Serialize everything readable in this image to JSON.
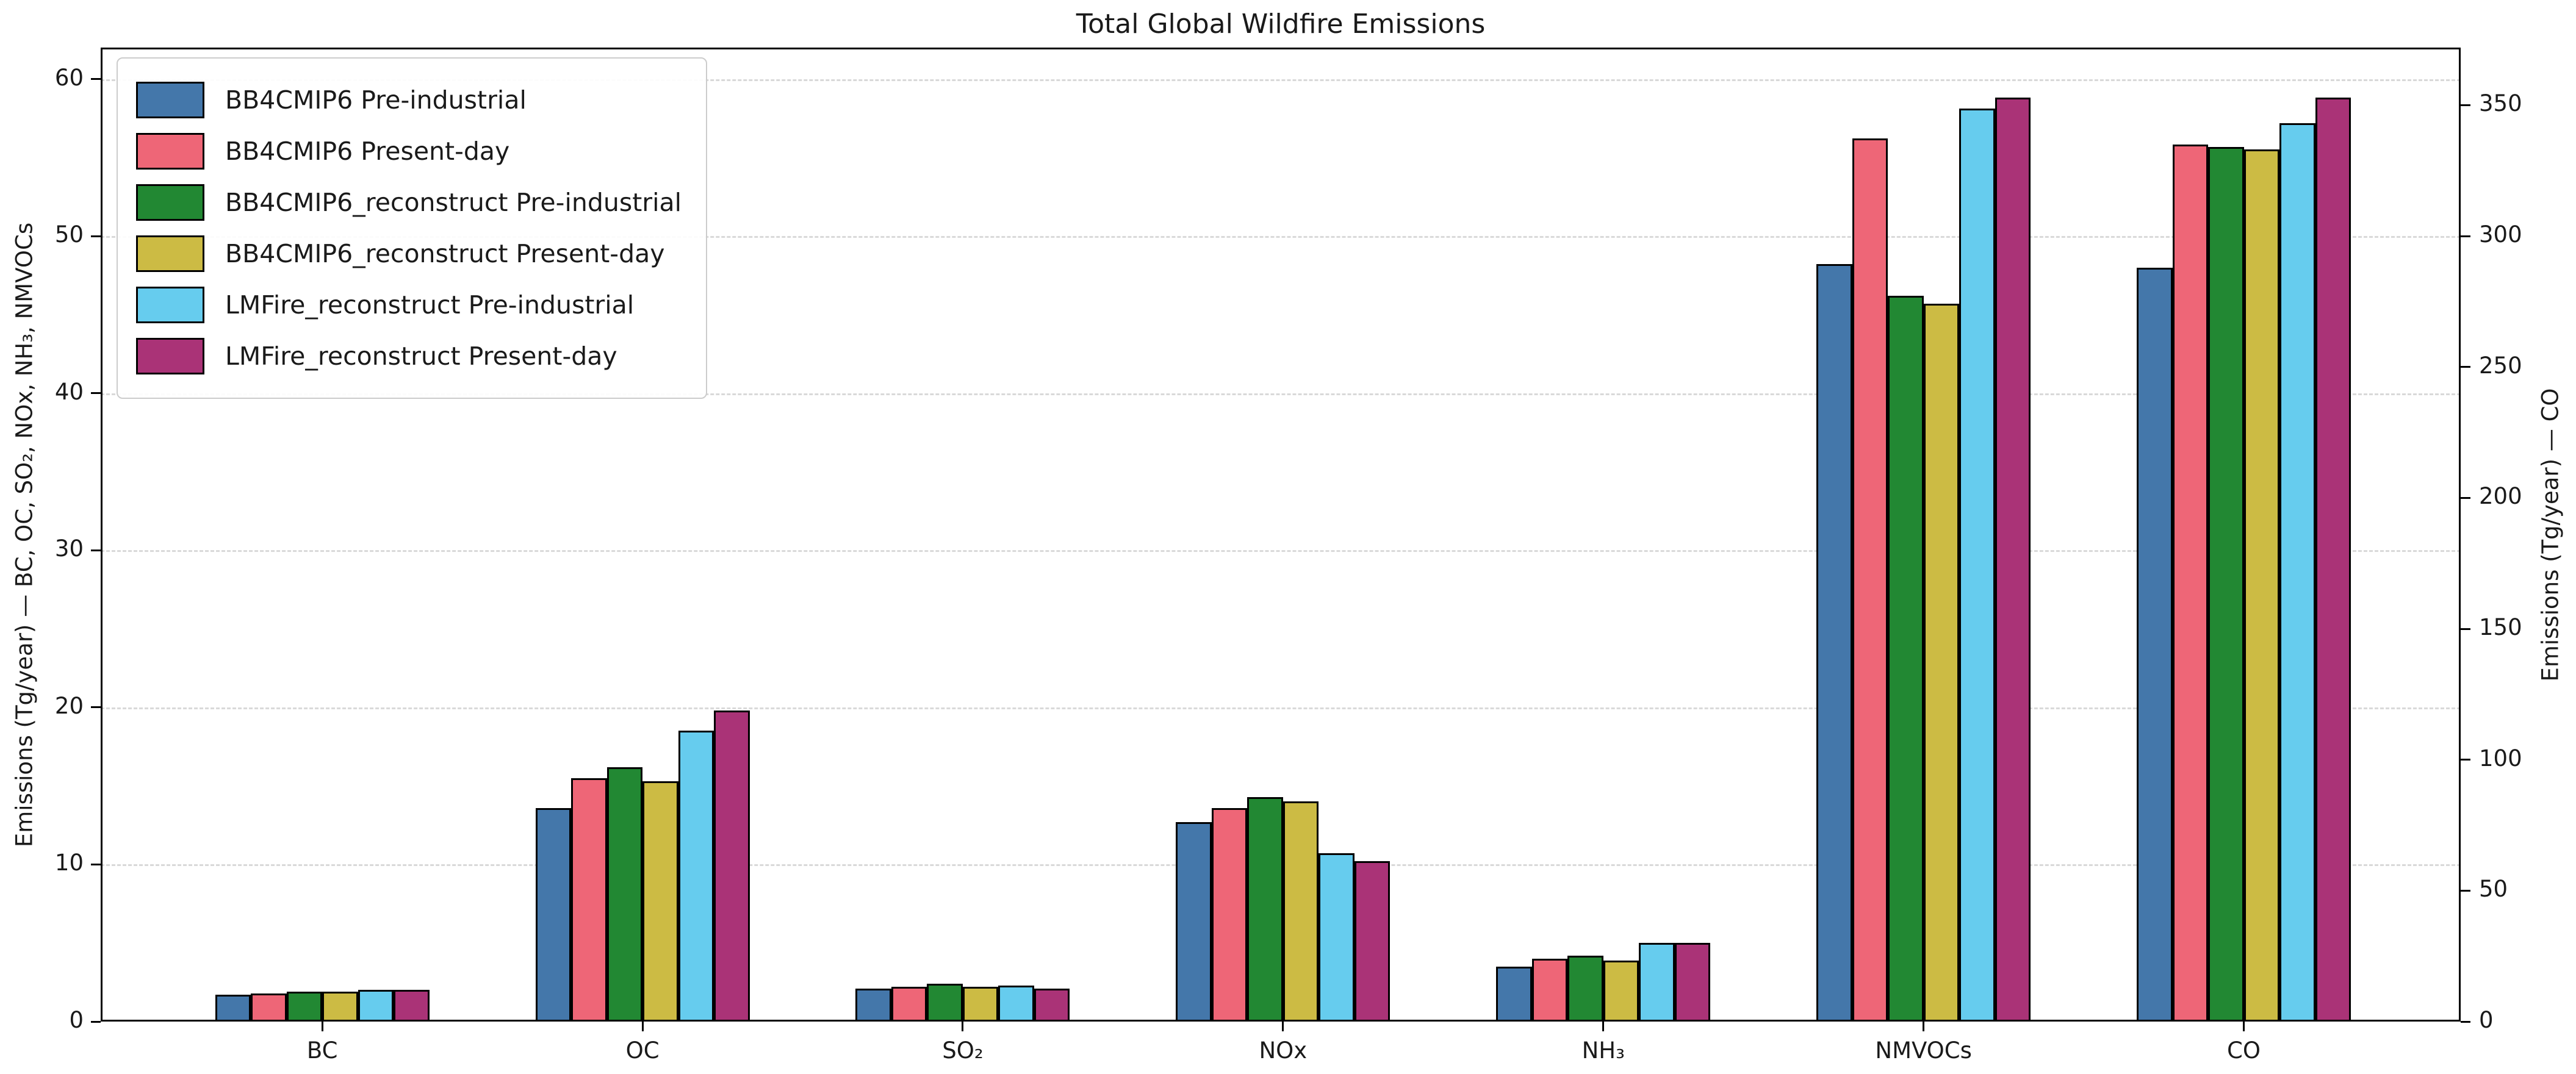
{
  "chart_data": {
    "type": "bar",
    "title": "Total Global Wildfire Emissions",
    "ylabel_left": "Emissions (Tg/year) — BC, OC, SO₂, NOx, NH₃, NMVOCs",
    "ylabel_right": "Emissions (Tg/year) — CO",
    "categories": [
      "BC",
      "OC",
      "SO₂",
      "NOx",
      "NH₃",
      "NMVOCs",
      "CO"
    ],
    "category_axis": [
      "left",
      "left",
      "left",
      "left",
      "left",
      "left",
      "right"
    ],
    "series": [
      {
        "name": "BB4CMIP6 Pre-industrial",
        "color": "#4477AA",
        "values": [
          1.7,
          13.6,
          2.1,
          12.7,
          3.5,
          48.2,
          288
        ]
      },
      {
        "name": "BB4CMIP6 Present-day",
        "color": "#EE6677",
        "values": [
          1.8,
          15.5,
          2.2,
          13.6,
          4.0,
          56.2,
          335
        ]
      },
      {
        "name": "BB4CMIP6_reconstruct Pre-industrial",
        "color": "#228833",
        "values": [
          1.9,
          16.2,
          2.4,
          14.3,
          4.2,
          46.2,
          334
        ]
      },
      {
        "name": "BB4CMIP6_reconstruct Present-day",
        "color": "#CCBB44",
        "values": [
          1.9,
          15.3,
          2.2,
          14.0,
          3.9,
          45.7,
          333
        ]
      },
      {
        "name": "LMFire_reconstruct Pre-industrial",
        "color": "#66CCEE",
        "values": [
          2.0,
          18.5,
          2.3,
          10.7,
          5.0,
          58.1,
          343
        ]
      },
      {
        "name": "LMFire_reconstruct Present-day",
        "color": "#AA3377",
        "values": [
          2.0,
          19.8,
          2.1,
          10.2,
          5.0,
          58.8,
          353
        ]
      }
    ],
    "yticks_left": [
      0,
      10,
      20,
      30,
      40,
      50,
      60
    ],
    "yticks_right": [
      0,
      50,
      100,
      150,
      200,
      250,
      300,
      350
    ],
    "ylim_left": [
      0,
      62
    ],
    "ylim_right": [
      0,
      372
    ],
    "grid": "horizontal dashed gridlines at left-axis ticks",
    "legend_position": "upper left",
    "bar_edge_color": "#000000"
  }
}
